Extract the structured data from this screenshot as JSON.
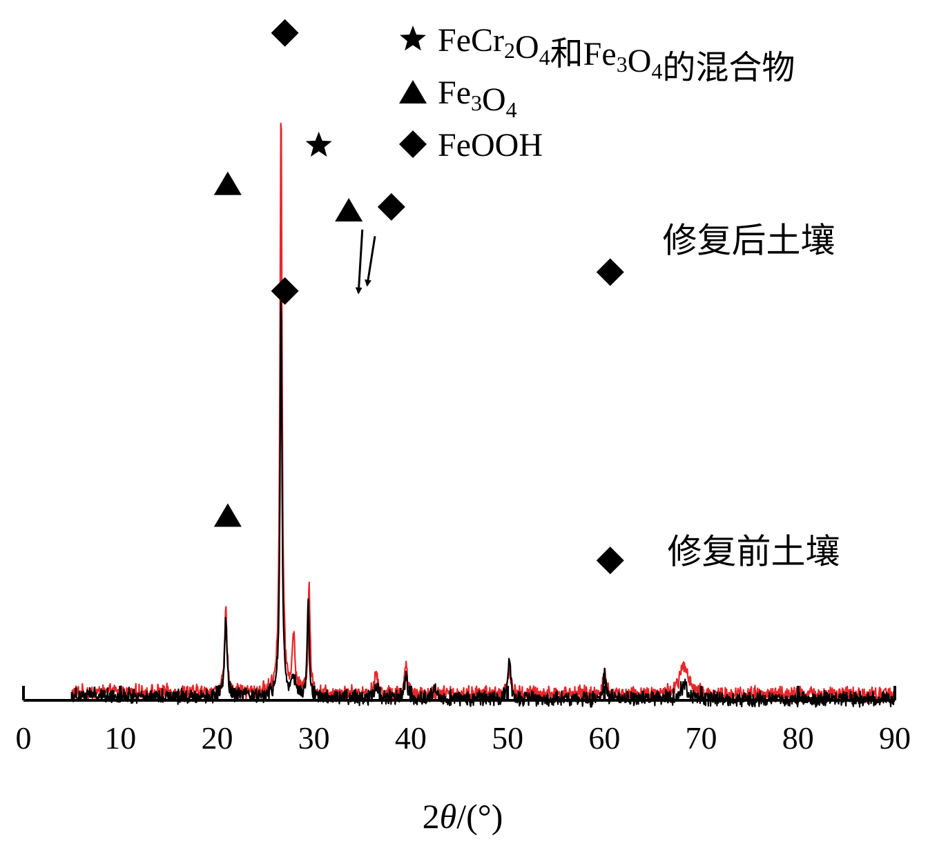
{
  "chart_data": {
    "type": "line",
    "xlabel": "2θ/(°)",
    "xlabel_parts": {
      "prefix": "2",
      "symbol": "θ",
      "suffix": "/(°)"
    },
    "xlim": [
      0,
      90
    ],
    "x_major_ticks": [
      0,
      10,
      20,
      30,
      40,
      50,
      60,
      70,
      80,
      90
    ],
    "x_minor_ticks": [
      5,
      15,
      25,
      35,
      45,
      55,
      65,
      75,
      85
    ],
    "y_axis_shown": false,
    "grid": false,
    "legend_position": "top-right",
    "legend": [
      {
        "marker": "star",
        "text": "FeCr2O4和Fe3O4的混合物",
        "parts": [
          {
            "t": "FeCr",
            "sub": false
          },
          {
            "t": "2",
            "sub": true
          },
          {
            "t": "O",
            "sub": false
          },
          {
            "t": "4",
            "sub": true
          },
          {
            "t": "和Fe",
            "sub": false
          },
          {
            "t": "3",
            "sub": true
          },
          {
            "t": "O",
            "sub": false
          },
          {
            "t": "4",
            "sub": true
          },
          {
            "t": "的混合物",
            "sub": false
          }
        ]
      },
      {
        "marker": "triangle",
        "text": "Fe3O4",
        "parts": [
          {
            "t": "Fe",
            "sub": false
          },
          {
            "t": "3",
            "sub": true
          },
          {
            "t": "O",
            "sub": false
          },
          {
            "t": "4",
            "sub": true
          }
        ]
      },
      {
        "marker": "diamond",
        "text": "FeOOH",
        "parts": [
          {
            "t": "FeOOH",
            "sub": false
          }
        ]
      }
    ],
    "series": [
      {
        "name": "修复后土壤",
        "color": "#e8262a",
        "x_range": [
          5,
          90
        ],
        "baseline_profile": [
          [
            5,
            0.81
          ],
          [
            9,
            0.84
          ],
          [
            15,
            0.84
          ],
          [
            25,
            0.82
          ],
          [
            35,
            0.76
          ],
          [
            45,
            0.72
          ],
          [
            60,
            0.69
          ],
          [
            75,
            0.67
          ],
          [
            90,
            0.63
          ]
        ],
        "peaks": [
          {
            "x": 20.9,
            "height": 8.5,
            "width": 0.15
          },
          {
            "x": 26.6,
            "height": 62.0,
            "width": 0.13
          },
          {
            "x": 27.9,
            "height": 6.0,
            "width": 0.15
          },
          {
            "x": 29.5,
            "height": 11.5,
            "width": 0.12
          },
          {
            "x": 36.4,
            "height": 2.0,
            "width": 0.2
          },
          {
            "x": 39.5,
            "height": 3.0,
            "width": 0.15
          },
          {
            "x": 50.2,
            "height": 3.0,
            "width": 0.15
          },
          {
            "x": 60.0,
            "height": 2.5,
            "width": 0.15
          },
          {
            "x": 68.2,
            "height": 3.0,
            "width": 0.5
          }
        ],
        "markers": [
          {
            "type": "diamond",
            "x": 27.0,
            "y": 70.6
          },
          {
            "type": "triangle",
            "x": 21.1,
            "y": 54.7
          },
          {
            "type": "star",
            "x": 30.5,
            "y": 58.7
          },
          {
            "type": "triangle",
            "x": 33.6,
            "y": 51.9
          },
          {
            "type": "diamond",
            "x": 38.0,
            "y": 52.2
          },
          {
            "type": "diamond",
            "x": 60.6,
            "y": 45.3
          }
        ],
        "arrows": [
          {
            "from": [
              35.0,
              49.8
            ],
            "to": [
              34.6,
              43.1
            ]
          },
          {
            "from": [
              36.3,
              49.1
            ],
            "to": [
              35.5,
              43.9
            ]
          }
        ],
        "label_pos": [
          66.0,
          47.4
        ]
      },
      {
        "name": "修复前土壤",
        "color": "#000000",
        "x_range": [
          5,
          90
        ],
        "baseline_profile": [
          [
            5,
            0.6
          ],
          [
            9,
            0.56
          ],
          [
            11,
            0.48
          ],
          [
            15,
            0.45
          ],
          [
            25,
            0.38
          ],
          [
            35,
            0.28
          ],
          [
            45,
            0.22
          ],
          [
            60,
            0.17
          ],
          [
            75,
            0.13
          ],
          [
            90,
            0.1
          ]
        ],
        "peaks": [
          {
            "x": 20.9,
            "height": 8.0,
            "width": 0.15
          },
          {
            "x": 26.6,
            "height": 42.0,
            "width": 0.12
          },
          {
            "x": 27.9,
            "height": 1.8,
            "width": 0.25
          },
          {
            "x": 29.4,
            "height": 9.7,
            "width": 0.12
          },
          {
            "x": 36.4,
            "height": 1.5,
            "width": 0.2
          },
          {
            "x": 39.5,
            "height": 2.5,
            "width": 0.15
          },
          {
            "x": 42.5,
            "height": 1.5,
            "width": 0.15
          },
          {
            "x": 50.2,
            "height": 4.0,
            "width": 0.15
          },
          {
            "x": 60.0,
            "height": 2.5,
            "width": 0.15
          },
          {
            "x": 68.2,
            "height": 1.5,
            "width": 0.4
          }
        ],
        "markers": [
          {
            "type": "diamond",
            "x": 27.0,
            "y": 43.3
          },
          {
            "type": "triangle",
            "x": 21.1,
            "y": 19.6
          },
          {
            "type": "diamond",
            "x": 60.6,
            "y": 14.8
          }
        ],
        "label_pos": [
          66.5,
          14.5
        ]
      }
    ]
  }
}
